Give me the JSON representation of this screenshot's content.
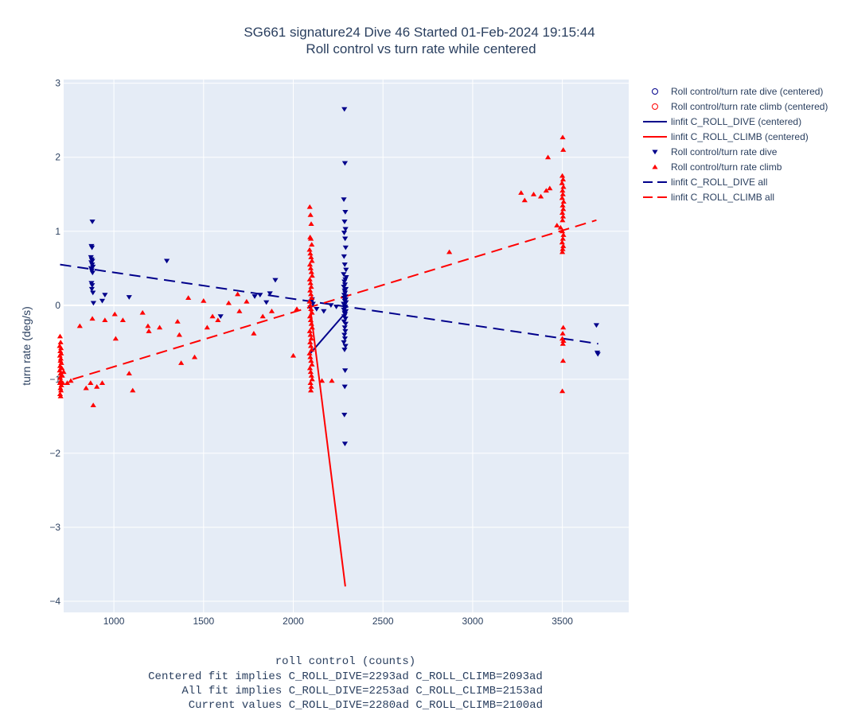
{
  "chart_data": {
    "type": "scatter",
    "title": "SG661 signature24 Dive 46 Started 01-Feb-2024 19:15:44",
    "subtitle": "Roll control vs turn rate while centered",
    "ylabel": "turn rate (deg/s)",
    "xlabel_lines": [
      "roll control (counts)",
      "Centered fit implies C_ROLL_DIVE=2293ad C_ROLL_CLIMB=2093ad",
      "All fit implies C_ROLL_DIVE=2253ad C_ROLL_CLIMB=2153ad",
      "Current values C_ROLL_DIVE=2280ad C_ROLL_CLIMB=2100ad"
    ],
    "xlim": [
      720,
      3870
    ],
    "ylim": [
      -4.15,
      3.05
    ],
    "xticks": [
      1000,
      1500,
      2000,
      2500,
      3000,
      3500
    ],
    "yticks": [
      -4,
      -3,
      -2,
      -1,
      0,
      1,
      2,
      3
    ],
    "ytick_labels": [
      "−4",
      "−3",
      "−2",
      "−1",
      "0",
      "1",
      "2",
      "3"
    ],
    "grid": true,
    "legend_position": "top-right",
    "colors": {
      "plot_bg": "#e5ecf6",
      "grid": "#ffffff",
      "dive": "#00008b",
      "climb": "#ff0000"
    },
    "legend": [
      {
        "label": "Roll control/turn rate dive (centered)",
        "kind": "circle",
        "color": "#00008b"
      },
      {
        "label": "Roll control/turn rate climb (centered)",
        "kind": "circle",
        "color": "#ff0000"
      },
      {
        "label": "linfit C_ROLL_DIVE (centered)",
        "kind": "solid",
        "color": "#00008b"
      },
      {
        "label": "linfit C_ROLL_CLIMB (centered)",
        "kind": "solid",
        "color": "#ff0000"
      },
      {
        "label": "Roll control/turn rate dive",
        "kind": "tri-down",
        "color": "#00008b"
      },
      {
        "label": "Roll control/turn rate climb",
        "kind": "tri-up",
        "color": "#ff0000"
      },
      {
        "label": "linfit C_ROLL_DIVE all",
        "kind": "dash",
        "color": "#00008b"
      },
      {
        "label": "linfit C_ROLL_CLIMB all",
        "kind": "dash",
        "color": "#ff0000"
      }
    ],
    "series": [
      {
        "name": "Roll control/turn rate dive",
        "marker": "tri-down",
        "color": "#00008b",
        "points": [
          [
            880,
            1.13
          ],
          [
            875,
            0.8
          ],
          [
            878,
            0.78
          ],
          [
            872,
            0.65
          ],
          [
            876,
            0.62
          ],
          [
            880,
            0.6
          ],
          [
            874,
            0.58
          ],
          [
            879,
            0.55
          ],
          [
            883,
            0.52
          ],
          [
            873,
            0.5
          ],
          [
            877,
            0.47
          ],
          [
            881,
            0.44
          ],
          [
            875,
            0.3
          ],
          [
            879,
            0.27
          ],
          [
            877,
            0.22
          ],
          [
            883,
            0.17
          ],
          [
            886,
            0.03
          ],
          [
            950,
            0.14
          ],
          [
            935,
            0.06
          ],
          [
            1085,
            0.11
          ],
          [
            1295,
            0.6
          ],
          [
            1595,
            -0.15
          ],
          [
            1785,
            0.12
          ],
          [
            1815,
            0.14
          ],
          [
            1850,
            0.04
          ],
          [
            1870,
            0.16
          ],
          [
            1900,
            0.34
          ],
          [
            2285,
            2.65
          ],
          [
            2288,
            1.92
          ],
          [
            2282,
            1.43
          ],
          [
            2290,
            1.26
          ],
          [
            2286,
            1.13
          ],
          [
            2291,
            1.03
          ],
          [
            2284,
            0.98
          ],
          [
            2289,
            0.9
          ],
          [
            2292,
            0.78
          ],
          [
            2283,
            0.66
          ],
          [
            2287,
            0.55
          ],
          [
            2294,
            0.48
          ],
          [
            2281,
            0.42
          ],
          [
            2295,
            0.38
          ],
          [
            2290,
            0.35
          ],
          [
            2285,
            0.32
          ],
          [
            2288,
            0.28
          ],
          [
            2282,
            0.25
          ],
          [
            2293,
            0.22
          ],
          [
            2286,
            0.2
          ],
          [
            2289,
            0.17
          ],
          [
            2284,
            0.14
          ],
          [
            2291,
            0.12
          ],
          [
            2283,
            0.1
          ],
          [
            2292,
            0.08
          ],
          [
            2287,
            0.06
          ],
          [
            2294,
            0.04
          ],
          [
            2281,
            0.02
          ],
          [
            2285,
            0.0
          ],
          [
            2290,
            -0.02
          ],
          [
            2288,
            -0.04
          ],
          [
            2282,
            -0.06
          ],
          [
            2293,
            -0.08
          ],
          [
            2286,
            -0.1
          ],
          [
            2289,
            -0.12
          ],
          [
            2284,
            -0.15
          ],
          [
            2291,
            -0.18
          ],
          [
            2283,
            -0.22
          ],
          [
            2292,
            -0.25
          ],
          [
            2287,
            -0.3
          ],
          [
            2290,
            -0.35
          ],
          [
            2285,
            -0.4
          ],
          [
            2288,
            -0.45
          ],
          [
            2282,
            -0.5
          ],
          [
            2291,
            -0.55
          ],
          [
            2286,
            -0.6
          ],
          [
            2289,
            -0.88
          ],
          [
            2287,
            -1.1
          ],
          [
            2285,
            -1.48
          ],
          [
            2288,
            -1.87
          ],
          [
            2100,
            0.05
          ],
          [
            2110,
            0.02
          ],
          [
            2095,
            -0.03
          ],
          [
            2105,
            0.08
          ],
          [
            2130,
            -0.05
          ],
          [
            2170,
            -0.08
          ],
          [
            2210,
            0.0
          ],
          [
            2240,
            -0.02
          ],
          [
            3690,
            -0.27
          ],
          [
            3695,
            -0.64
          ],
          [
            3698,
            -0.66
          ]
        ]
      },
      {
        "name": "Roll control/turn rate climb",
        "marker": "tri-up",
        "color": "#ff0000",
        "points": [
          [
            700,
            -0.42
          ],
          [
            703,
            -0.5
          ],
          [
            698,
            -0.55
          ],
          [
            705,
            -0.58
          ],
          [
            701,
            -0.62
          ],
          [
            706,
            -0.65
          ],
          [
            699,
            -0.68
          ],
          [
            704,
            -0.72
          ],
          [
            702,
            -0.75
          ],
          [
            707,
            -0.78
          ],
          [
            700,
            -0.82
          ],
          [
            705,
            -0.85
          ],
          [
            698,
            -0.88
          ],
          [
            703,
            -0.92
          ],
          [
            706,
            -0.95
          ],
          [
            701,
            -0.98
          ],
          [
            704,
            -1.02
          ],
          [
            699,
            -1.05
          ],
          [
            707,
            -1.08
          ],
          [
            702,
            -1.12
          ],
          [
            705,
            -1.15
          ],
          [
            700,
            -1.2
          ],
          [
            703,
            -1.23
          ],
          [
            710,
            -0.85
          ],
          [
            712,
            -0.95
          ],
          [
            715,
            -1.05
          ],
          [
            720,
            -0.9
          ],
          [
            740,
            -1.05
          ],
          [
            760,
            -1.02
          ],
          [
            810,
            -0.28
          ],
          [
            845,
            -1.12
          ],
          [
            870,
            -1.05
          ],
          [
            880,
            -0.18
          ],
          [
            885,
            -1.35
          ],
          [
            905,
            -1.1
          ],
          [
            935,
            -1.05
          ],
          [
            950,
            -0.2
          ],
          [
            1005,
            -0.12
          ],
          [
            1010,
            -0.45
          ],
          [
            1050,
            -0.2
          ],
          [
            1085,
            -0.92
          ],
          [
            1105,
            -1.15
          ],
          [
            1160,
            -0.1
          ],
          [
            1190,
            -0.28
          ],
          [
            1195,
            -0.35
          ],
          [
            1255,
            -0.3
          ],
          [
            1355,
            -0.22
          ],
          [
            1365,
            -0.4
          ],
          [
            1375,
            -0.78
          ],
          [
            1415,
            0.1
          ],
          [
            1450,
            -0.7
          ],
          [
            1500,
            0.06
          ],
          [
            1520,
            -0.3
          ],
          [
            1550,
            -0.15
          ],
          [
            1580,
            -0.2
          ],
          [
            1640,
            0.03
          ],
          [
            1690,
            0.15
          ],
          [
            1700,
            -0.08
          ],
          [
            1740,
            0.05
          ],
          [
            1780,
            -0.38
          ],
          [
            1830,
            -0.15
          ],
          [
            1880,
            -0.08
          ],
          [
            2000,
            -0.68
          ],
          [
            2020,
            -0.05
          ],
          [
            2092,
            1.33
          ],
          [
            2096,
            1.22
          ],
          [
            2100,
            1.1
          ],
          [
            2094,
            0.92
          ],
          [
            2098,
            0.9
          ],
          [
            2103,
            0.82
          ],
          [
            2091,
            0.75
          ],
          [
            2095,
            0.7
          ],
          [
            2099,
            0.65
          ],
          [
            2104,
            0.6
          ],
          [
            2093,
            0.55
          ],
          [
            2097,
            0.5
          ],
          [
            2101,
            0.45
          ],
          [
            2105,
            0.4
          ],
          [
            2092,
            0.35
          ],
          [
            2096,
            0.3
          ],
          [
            2100,
            0.25
          ],
          [
            2094,
            0.2
          ],
          [
            2098,
            0.15
          ],
          [
            2103,
            0.1
          ],
          [
            2091,
            0.05
          ],
          [
            2095,
            0.0
          ],
          [
            2099,
            -0.05
          ],
          [
            2104,
            -0.1
          ],
          [
            2093,
            -0.15
          ],
          [
            2097,
            -0.2
          ],
          [
            2101,
            -0.25
          ],
          [
            2105,
            -0.3
          ],
          [
            2092,
            -0.35
          ],
          [
            2096,
            -0.4
          ],
          [
            2100,
            -0.45
          ],
          [
            2094,
            -0.5
          ],
          [
            2098,
            -0.55
          ],
          [
            2103,
            -0.6
          ],
          [
            2091,
            -0.65
          ],
          [
            2095,
            -0.7
          ],
          [
            2099,
            -0.75
          ],
          [
            2104,
            -0.8
          ],
          [
            2093,
            -0.85
          ],
          [
            2097,
            -0.9
          ],
          [
            2101,
            -0.95
          ],
          [
            2105,
            -1.0
          ],
          [
            2096,
            -1.05
          ],
          [
            2100,
            -1.1
          ],
          [
            2098,
            -1.15
          ],
          [
            2160,
            -1.02
          ],
          [
            2215,
            -1.02
          ],
          [
            2870,
            0.72
          ],
          [
            3270,
            1.52
          ],
          [
            3290,
            1.42
          ],
          [
            3340,
            1.5
          ],
          [
            3380,
            1.47
          ],
          [
            3420,
            2.0
          ],
          [
            3410,
            1.55
          ],
          [
            3430,
            1.58
          ],
          [
            3470,
            1.08
          ],
          [
            3490,
            1.05
          ],
          [
            3500,
            1.0
          ],
          [
            3502,
            2.27
          ],
          [
            3505,
            2.1
          ],
          [
            3500,
            1.75
          ],
          [
            3504,
            1.7
          ],
          [
            3498,
            1.65
          ],
          [
            3506,
            1.6
          ],
          [
            3501,
            1.55
          ],
          [
            3503,
            1.5
          ],
          [
            3499,
            1.45
          ],
          [
            3507,
            1.4
          ],
          [
            3502,
            1.35
          ],
          [
            3505,
            1.3
          ],
          [
            3500,
            1.25
          ],
          [
            3504,
            1.2
          ],
          [
            3501,
            1.15
          ],
          [
            3506,
            0.95
          ],
          [
            3503,
            0.9
          ],
          [
            3499,
            0.85
          ],
          [
            3505,
            0.8
          ],
          [
            3502,
            0.76
          ],
          [
            3500,
            0.72
          ],
          [
            3505,
            -0.3
          ],
          [
            3502,
            -0.38
          ],
          [
            3500,
            -0.45
          ],
          [
            3506,
            -0.48
          ],
          [
            3503,
            -0.52
          ],
          [
            3504,
            -0.75
          ],
          [
            3500,
            -1.16
          ]
        ]
      }
    ],
    "fits": [
      {
        "name": "linfit C_ROLL_DIVE (centered)",
        "style": "solid",
        "color": "#00008b",
        "x": [
          2095,
          2292
        ],
        "y": [
          -0.65,
          -0.1
        ]
      },
      {
        "name": "linfit C_ROLL_CLIMB (centered)",
        "style": "solid",
        "color": "#ff0000",
        "x": [
          2093,
          2290
        ],
        "y": [
          0.0,
          -3.8
        ]
      },
      {
        "name": "linfit C_ROLL_DIVE all",
        "style": "dash",
        "color": "#00008b",
        "x": [
          700,
          3700
        ],
        "y": [
          0.55,
          -0.52
        ]
      },
      {
        "name": "linfit C_ROLL_CLIMB all",
        "style": "dash",
        "color": "#ff0000",
        "x": [
          770,
          3690
        ],
        "y": [
          -1.0,
          1.15
        ]
      }
    ]
  }
}
